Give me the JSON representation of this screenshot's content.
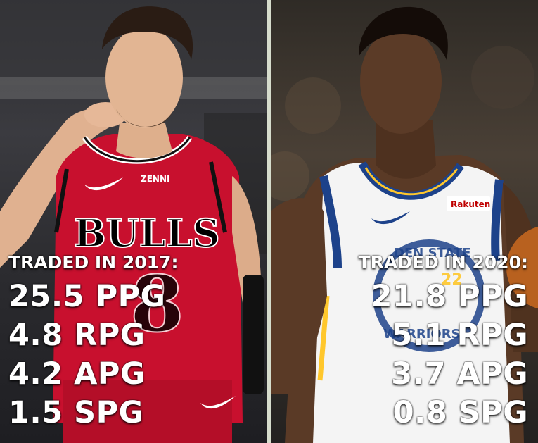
{
  "left_player": {
    "header": "TRADED IN 2017:",
    "stats": [
      "25.5 PPG",
      "4.8 RPG",
      "4.2 APG",
      "1.5 SPG"
    ],
    "jersey_text": "BULLS",
    "jersey_sponsor": "ZENNI",
    "jersey_color": "#c8102e"
  },
  "right_player": {
    "header": "TRADED IN 2020:",
    "stats": [
      "21.8 PPG",
      "5.1 RPG",
      "3.7 APG",
      "0.8 SPG"
    ],
    "jersey_sponsor": "Rakuten",
    "jersey_color": "#f4f4f4",
    "trim_color": "#1d428a"
  },
  "divider_color": "#d6dccc"
}
